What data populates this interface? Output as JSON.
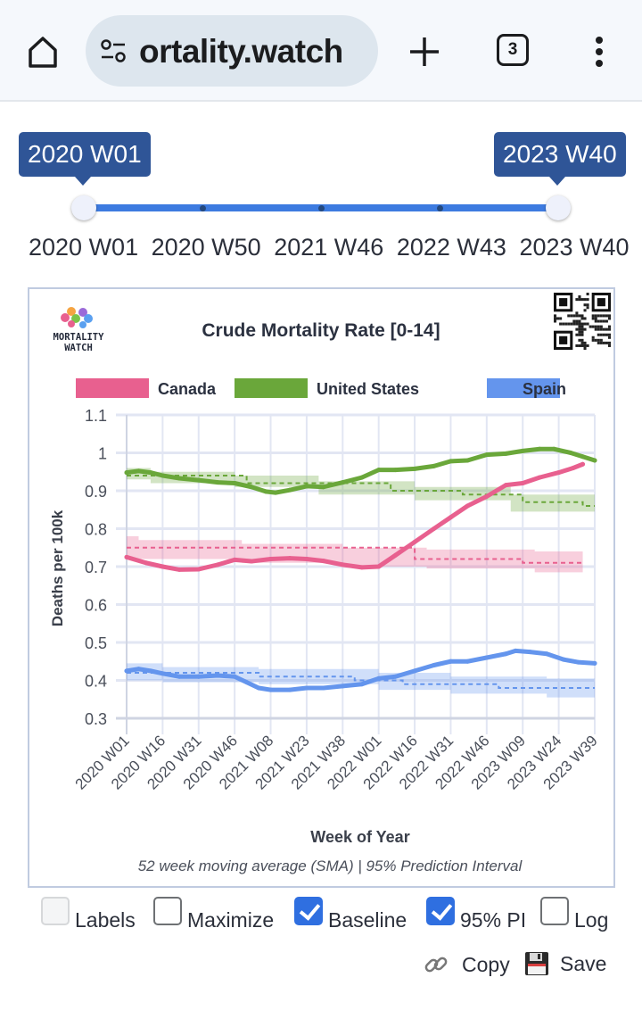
{
  "browser": {
    "url_text": "ortality.watch",
    "tab_count": "3",
    "icons": [
      "home-icon",
      "site-settings-icon",
      "new-tab-icon",
      "tab-switcher-icon",
      "more-menu-icon"
    ]
  },
  "range_slider": {
    "start_value": "2020 W01",
    "end_value": "2023 W40",
    "tick_labels": [
      "2020 W01",
      "2020 W50",
      "2021 W46",
      "2022 W43",
      "2023 W40"
    ],
    "selected_fraction": [
      0,
      1
    ]
  },
  "chart_header": {
    "logo_line1": "MORTALITY",
    "logo_line2": "WATCH"
  },
  "chart_data": {
    "type": "line",
    "title": "Crude Mortality Rate [0-14]",
    "xlabel": "Week of Year",
    "ylabel": "Deaths per 100k",
    "caption": "52 week moving average (SMA) | 95% Prediction Interval",
    "ylim": [
      0.3,
      1.1
    ],
    "yticks": [
      "1.1",
      "1",
      "0.9",
      "0.8",
      "0.7",
      "0.6",
      "0.5",
      "0.4",
      "0.3"
    ],
    "ytick_values": [
      1.1,
      1.0,
      0.9,
      0.8,
      0.7,
      0.6,
      0.5,
      0.4,
      0.3
    ],
    "xlim": [
      0,
      195
    ],
    "xticks": [
      "2020 W01",
      "2020 W16",
      "2020 W31",
      "2020 W46",
      "2021 W08",
      "2021 W23",
      "2021 W38",
      "2022 W01",
      "2022 W16",
      "2022 W31",
      "2022 W46",
      "2023 W09",
      "2023 W24",
      "2023 W39"
    ],
    "xtick_index": [
      0,
      15,
      30,
      45,
      60,
      75,
      90,
      105,
      120,
      135,
      150,
      165,
      180,
      195
    ],
    "grid": true,
    "legend_position": "top",
    "series": [
      {
        "name": "Canada",
        "color": "#e8608f",
        "x": [
          0,
          8,
          15,
          22,
          30,
          38,
          45,
          52,
          60,
          68,
          75,
          82,
          90,
          98,
          105,
          112,
          120,
          128,
          135,
          142,
          150,
          158,
          165,
          172,
          180,
          186,
          190
        ],
        "values": [
          0.725,
          0.71,
          0.7,
          0.692,
          0.693,
          0.705,
          0.718,
          0.714,
          0.72,
          0.722,
          0.72,
          0.715,
          0.705,
          0.698,
          0.7,
          0.73,
          0.765,
          0.8,
          0.83,
          0.86,
          0.885,
          0.915,
          0.92,
          0.935,
          0.948,
          0.96,
          0.97
        ],
        "baseline_x": [
          0,
          120,
          120,
          165,
          165,
          190
        ],
        "baseline": [
          0.75,
          0.75,
          0.72,
          0.72,
          0.71,
          0.71
        ],
        "pi_x": [
          0,
          5,
          5,
          48,
          48,
          90,
          90,
          125,
          125,
          170,
          170,
          190
        ],
        "pi_upper": [
          0.78,
          0.78,
          0.77,
          0.77,
          0.76,
          0.76,
          0.75,
          0.75,
          0.745,
          0.745,
          0.74,
          0.74
        ],
        "pi_lower": [
          0.72,
          0.72,
          0.72,
          0.72,
          0.71,
          0.71,
          0.7,
          0.7,
          0.695,
          0.695,
          0.685,
          0.685
        ]
      },
      {
        "name": "United States",
        "color": "#6aa73a",
        "x": [
          0,
          5,
          10,
          15,
          22,
          30,
          38,
          45,
          52,
          58,
          62,
          68,
          75,
          82,
          90,
          98,
          105,
          112,
          120,
          128,
          135,
          142,
          150,
          158,
          165,
          172,
          178,
          185,
          190,
          195
        ],
        "values": [
          0.948,
          0.952,
          0.948,
          0.94,
          0.933,
          0.928,
          0.922,
          0.92,
          0.91,
          0.898,
          0.895,
          0.902,
          0.912,
          0.91,
          0.922,
          0.935,
          0.955,
          0.955,
          0.958,
          0.965,
          0.978,
          0.98,
          0.995,
          0.998,
          1.005,
          1.01,
          1.01,
          1.0,
          0.99,
          0.98
        ],
        "baseline_x": [
          0,
          50,
          50,
          110,
          110,
          140,
          140,
          165,
          165,
          190,
          190,
          195
        ],
        "baseline": [
          0.94,
          0.94,
          0.92,
          0.92,
          0.9,
          0.9,
          0.89,
          0.89,
          0.87,
          0.87,
          0.86,
          0.86
        ],
        "pi_x": [
          0,
          10,
          10,
          45,
          45,
          80,
          80,
          120,
          120,
          160,
          160,
          195
        ],
        "pi_upper": [
          0.96,
          0.96,
          0.95,
          0.95,
          0.94,
          0.94,
          0.925,
          0.925,
          0.91,
          0.91,
          0.89,
          0.89
        ],
        "pi_lower": [
          0.93,
          0.93,
          0.92,
          0.92,
          0.91,
          0.91,
          0.89,
          0.89,
          0.875,
          0.875,
          0.845,
          0.845
        ]
      },
      {
        "name": "Spain",
        "color": "#6495ed",
        "x": [
          0,
          5,
          10,
          15,
          22,
          30,
          38,
          45,
          50,
          55,
          60,
          68,
          75,
          82,
          90,
          98,
          105,
          112,
          120,
          128,
          135,
          142,
          150,
          158,
          162,
          168,
          175,
          182,
          188,
          195
        ],
        "values": [
          0.425,
          0.43,
          0.425,
          0.418,
          0.41,
          0.41,
          0.413,
          0.41,
          0.395,
          0.38,
          0.375,
          0.375,
          0.38,
          0.38,
          0.385,
          0.39,
          0.405,
          0.41,
          0.425,
          0.44,
          0.45,
          0.45,
          0.46,
          0.47,
          0.478,
          0.475,
          0.47,
          0.455,
          0.448,
          0.445
        ],
        "baseline_x": [
          0,
          55,
          55,
          95,
          95,
          115,
          115,
          155,
          155,
          195
        ],
        "baseline": [
          0.42,
          0.42,
          0.41,
          0.41,
          0.4,
          0.4,
          0.39,
          0.39,
          0.38,
          0.38
        ],
        "pi_x": [
          0,
          15,
          15,
          55,
          55,
          105,
          105,
          135,
          135,
          175,
          175,
          195
        ],
        "pi_upper": [
          0.445,
          0.445,
          0.435,
          0.435,
          0.43,
          0.43,
          0.42,
          0.42,
          0.41,
          0.41,
          0.405,
          0.405
        ],
        "pi_lower": [
          0.4,
          0.4,
          0.395,
          0.395,
          0.39,
          0.39,
          0.375,
          0.375,
          0.365,
          0.365,
          0.355,
          0.355
        ]
      }
    ]
  },
  "options": [
    {
      "label": "Labels",
      "checked": false,
      "disabled": true
    },
    {
      "label": "Maximize",
      "checked": false,
      "disabled": false
    },
    {
      "label": "Baseline",
      "checked": true,
      "disabled": false
    },
    {
      "label": "95% PI",
      "checked": true,
      "disabled": false
    },
    {
      "label": "Log",
      "checked": false,
      "disabled": false
    }
  ],
  "actions": {
    "copy_label": "Copy",
    "save_label": "Save"
  }
}
